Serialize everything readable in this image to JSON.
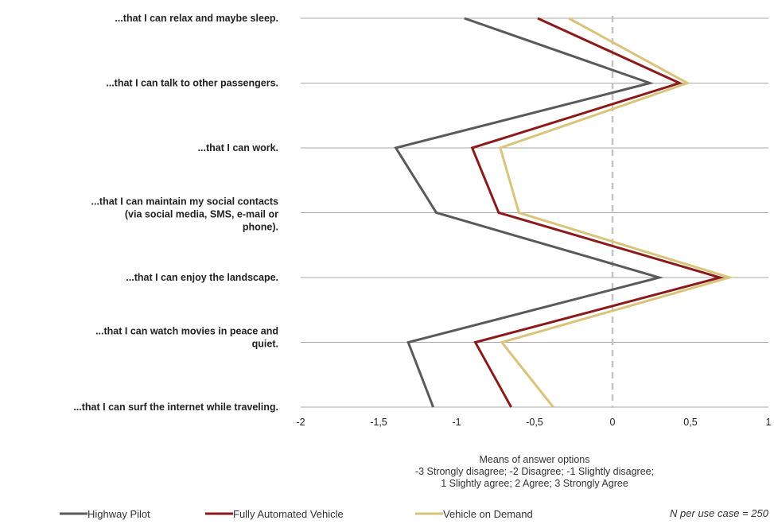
{
  "chart_data": {
    "type": "line",
    "orientation": "horizontal-categories-on-y",
    "categories": [
      [
        "...that I can relax and maybe sleep."
      ],
      [
        "...that I can talk to other passengers."
      ],
      [
        "...that I can work."
      ],
      [
        "...that I can maintain my social contacts",
        "(via social media, SMS, e-mail or",
        "phone)."
      ],
      [
        "...that I can enjoy the landscape."
      ],
      [
        "...that I can watch movies in peace and",
        "quiet."
      ],
      [
        "...that I can surf the internet while traveling."
      ]
    ],
    "series": [
      {
        "name": "Highway Pilot",
        "color": "#5a5a5a",
        "values": [
          -0.95,
          0.24,
          -1.39,
          -1.13,
          0.3,
          -1.31,
          -1.15
        ]
      },
      {
        "name": "Fully Automated Vehicle",
        "color": "#8b1a1a",
        "values": [
          -0.48,
          0.43,
          -0.9,
          -0.73,
          0.69,
          -0.88,
          -0.65
        ]
      },
      {
        "name": "Vehicle  on Demand",
        "color": "#d8c47a",
        "values": [
          -0.28,
          0.48,
          -0.72,
          -0.6,
          0.75,
          -0.71,
          -0.38
        ]
      }
    ],
    "xlim": [
      -2,
      1
    ],
    "xticks": [
      "-2",
      "-1,5",
      "-1",
      "-0,5",
      "0",
      "0,5",
      "1"
    ],
    "xtick_values": [
      -2,
      -1.5,
      -1,
      -0.5,
      0,
      0.5,
      1
    ],
    "reference_line": 0,
    "xlabel": [
      "Means of answer options",
      "-3 Strongly disagree; -2 Disagree; -1 Slightly disagree;",
      "1 Slightly agree; 2 Agree; 3 Strongly Agree"
    ],
    "legend_placement": "bottom",
    "note": "N per use case = 250",
    "gridlines": "horizontal"
  }
}
